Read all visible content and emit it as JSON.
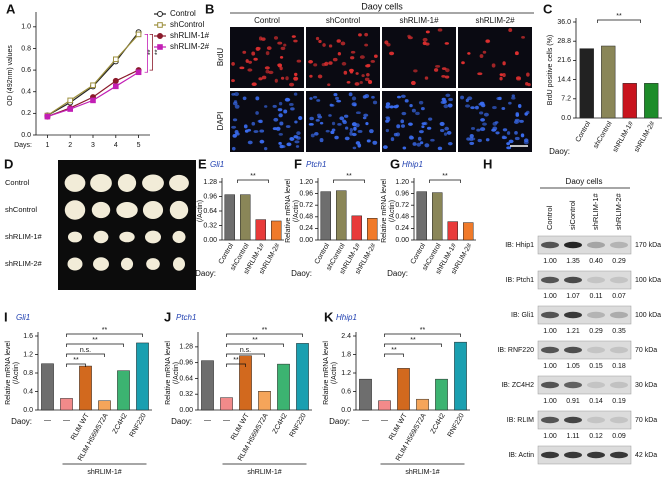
{
  "chart_data": [
    {
      "type": "line",
      "panel": "A",
      "ylabel": "OD (492nm) values",
      "xlabel": "Days:",
      "x": [
        1,
        2,
        3,
        4,
        5
      ],
      "xlim": [
        0.5,
        5.5
      ],
      "xticks": [
        1,
        2,
        3,
        4,
        5
      ],
      "ylim": [
        0,
        1.1
      ],
      "yticks": [
        {
          "value": 0,
          "label": "0.0"
        },
        0.2,
        0.4,
        0.6,
        0.8,
        {
          "value": 1,
          "label": "1.0"
        }
      ],
      "series": [
        {
          "name": "Control",
          "color": "#222222",
          "values": [
            0.18,
            0.3,
            0.45,
            0.68,
            0.95
          ]
        },
        {
          "name": "shControl",
          "color": "#9c8f3c",
          "values": [
            0.18,
            0.32,
            0.46,
            0.7,
            0.93
          ]
        },
        {
          "name": "shRLIM-1#",
          "color": "#8b1a2b",
          "values": [
            0.17,
            0.25,
            0.35,
            0.5,
            0.6
          ]
        },
        {
          "name": "shRLIM-2#",
          "color": "#c21fb5",
          "values": [
            0.17,
            0.24,
            0.32,
            0.45,
            0.58
          ]
        }
      ],
      "annotations": [
        "**",
        "**"
      ]
    },
    {
      "type": "bar",
      "panel": "C",
      "ylabel": [
        "BrdU positive cells (%)"
      ],
      "xlabel": "Daoy:",
      "categories": [
        "Control",
        "shControl",
        "shRLIM-1#",
        "shRLIM-2#"
      ],
      "values": [
        26,
        27,
        13,
        13
      ],
      "colors": [
        "#222222",
        "#8a8658",
        "#c8141e",
        "#1e8c2a"
      ],
      "ylim": [
        0,
        36
      ],
      "yticks": [
        {
          "value": 0,
          "label": "0.0"
        },
        7.2,
        14.4,
        21.6,
        28.8,
        {
          "value": 36,
          "label": "36.0"
        }
      ],
      "annotations": [
        "**"
      ]
    },
    {
      "type": "bar",
      "panel": "E",
      "title": "Gli1",
      "ylabel": [
        "Relative mRNA level",
        "(/Actin)"
      ],
      "xlabel": "Daoy:",
      "categories": [
        "Control",
        "shControl",
        "shRLIM-1#",
        "shRLIM-2#"
      ],
      "values": [
        1.0,
        1.0,
        0.45,
        0.42
      ],
      "colors": [
        "#6e6e6e",
        "#8a8658",
        "#e83a3a",
        "#f07a2a"
      ],
      "ylim": [
        0,
        1.28
      ],
      "yticks": [
        {
          "value": 0,
          "label": "0.00"
        },
        0.32,
        0.64,
        0.96,
        1.28
      ],
      "annotations": [
        "**"
      ]
    },
    {
      "type": "bar",
      "panel": "F",
      "title": "Ptch1",
      "ylabel": [
        "Relative mRNA level",
        "(/Actin)"
      ],
      "xlabel": "Daoy:",
      "categories": [
        "Control",
        "shControl",
        "shRLIM-1#",
        "shRLIM-2#"
      ],
      "values": [
        1.0,
        1.02,
        0.5,
        0.45
      ],
      "colors": [
        "#6e6e6e",
        "#8a8658",
        "#e83a3a",
        "#f07a2a"
      ],
      "ylim": [
        0,
        1.2
      ],
      "yticks": [
        {
          "value": 0,
          "label": "0.00"
        },
        0.24,
        0.48,
        0.72,
        0.96,
        {
          "value": 1.2,
          "label": "1.20"
        }
      ],
      "annotations": [
        "**"
      ]
    },
    {
      "type": "bar",
      "panel": "G",
      "title": "Hhip1",
      "ylabel": [
        "Relative mRNA level",
        "(/Actin)"
      ],
      "xlabel": "Daoy:",
      "categories": [
        "Control",
        "shControl",
        "shRLIM-1#",
        "shRLIM-2#"
      ],
      "values": [
        1.0,
        0.98,
        0.38,
        0.36
      ],
      "colors": [
        "#6e6e6e",
        "#8a8658",
        "#e83a3a",
        "#f07a2a"
      ],
      "ylim": [
        0,
        1.2
      ],
      "yticks": [
        {
          "value": 0,
          "label": "0.00"
        },
        0.24,
        0.48,
        0.72,
        0.96,
        {
          "value": 1.2,
          "label": "1.20"
        }
      ],
      "annotations": [
        "**"
      ]
    },
    {
      "type": "bar",
      "panel": "I",
      "title": "Gli1",
      "ylabel": [
        "Relative mRNA level",
        "(/Actin)"
      ],
      "xlabel": "Daoy:",
      "group_label": "shRLIM-1#",
      "categories": [
        "—",
        "—",
        "RLIM WT",
        "RLIM H569/572A",
        "ZC4H2",
        "RNF220"
      ],
      "values": [
        1.0,
        0.25,
        0.95,
        0.2,
        0.85,
        1.45
      ],
      "colors": [
        "#6e6e6e",
        "#f28a8a",
        "#d2691e",
        "#f5a55a",
        "#3cb371",
        "#1a9fb0"
      ],
      "ylim": [
        0,
        1.6
      ],
      "yticks": [
        {
          "value": 0,
          "label": "0.0"
        },
        0.4,
        0.8,
        1.2,
        1.6
      ],
      "annotations": [
        "**",
        "n.s.",
        "**",
        "**"
      ]
    },
    {
      "type": "bar",
      "panel": "J",
      "title": "Ptch1",
      "ylabel": [
        "Relative mRNA level",
        "(/Actin)"
      ],
      "xlabel": "Daoy:",
      "group_label": "shRLIM-1#",
      "categories": [
        "—",
        "—",
        "RLIM WT",
        "RLIM H569/572A",
        "ZC4H2",
        "RNF220"
      ],
      "values": [
        1.0,
        0.25,
        1.1,
        0.38,
        0.93,
        1.35
      ],
      "colors": [
        "#6e6e6e",
        "#f28a8a",
        "#d2691e",
        "#f5a55a",
        "#3cb371",
        "#1a9fb0"
      ],
      "ylim": [
        0,
        1.5
      ],
      "yticks": [
        {
          "value": 0,
          "label": "0.00"
        },
        0.32,
        0.64,
        0.96,
        1.28
      ],
      "annotations": [
        "**",
        "n.s.",
        "**",
        "**"
      ]
    },
    {
      "type": "bar",
      "panel": "K",
      "title": "Hhip1",
      "ylabel": [
        "Relative mRNA level",
        "(/Actin)"
      ],
      "xlabel": "Daoy:",
      "group_label": "shRLIM-1#",
      "categories": [
        "—",
        "—",
        "RLIM WT",
        "RLIM H569/572A",
        "ZC4H2",
        "RNF220"
      ],
      "values": [
        1.0,
        0.3,
        1.35,
        0.35,
        1.0,
        2.2
      ],
      "colors": [
        "#6e6e6e",
        "#f28a8a",
        "#d2691e",
        "#f5a55a",
        "#3cb371",
        "#1a9fb0"
      ],
      "ylim": [
        0,
        2.4
      ],
      "yticks": [
        {
          "value": 0,
          "label": "0.0"
        },
        0.6,
        1.2,
        1.8,
        2.4
      ],
      "annotations": [
        "**",
        "**",
        "**"
      ]
    }
  ],
  "images": {
    "panel": "B",
    "title": "Daoy cells",
    "columns": [
      "Control",
      "shControl",
      "shRLIM-1#",
      "shRLIM-2#"
    ],
    "rows": [
      "BrdU",
      "DAPI"
    ]
  },
  "tumors": {
    "panel": "D",
    "rows": [
      "Control",
      "shControl",
      "shRLIM-1#",
      "shRLIM-2#"
    ]
  },
  "blots": {
    "panel": "H",
    "title": "Daoy cells",
    "columns": [
      "Control",
      "siControl",
      "shRLIM-1#",
      "shRLIM-2#"
    ],
    "rows": [
      {
        "label": "IB: Hhip1",
        "size": "170 kDa",
        "values": [
          "1.00",
          "1.35",
          "0.40",
          "0.29"
        ]
      },
      {
        "label": "IB: Ptch1",
        "size": "100 kDa",
        "values": [
          "1.00",
          "1.07",
          "0.11",
          "0.07"
        ]
      },
      {
        "label": "IB: Gli1",
        "size": "100 kDa",
        "values": [
          "1.00",
          "1.21",
          "0.29",
          "0.35"
        ]
      },
      {
        "label": "IB: RNF220",
        "size": "70 kDa",
        "values": [
          "1.00",
          "1.05",
          "0.15",
          "0.18"
        ]
      },
      {
        "label": "IB: ZC4H2",
        "size": "30 kDa",
        "values": [
          "1.00",
          "0.91",
          "0.14",
          "0.19"
        ]
      },
      {
        "label": "IB: RLIM",
        "size": "70 kDa",
        "values": [
          "1.00",
          "1.11",
          "0.12",
          "0.09"
        ]
      },
      {
        "label": "IB: Actin",
        "size": "42 kDa"
      }
    ]
  }
}
